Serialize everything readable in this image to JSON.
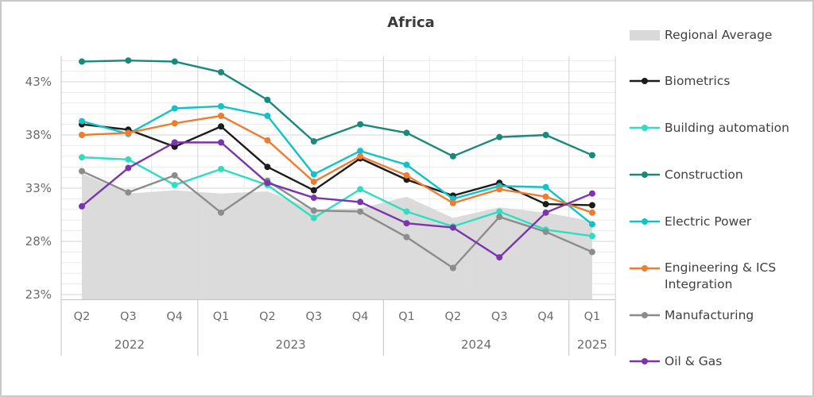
{
  "panel": {
    "title": "Africa"
  },
  "y_axis": {
    "tick_labels": [
      "43%",
      "38%",
      "33%",
      "28%",
      "23%"
    ],
    "tick_values": [
      43,
      38,
      33,
      28,
      23
    ]
  },
  "legend": {
    "items": [
      {
        "name": "Regional Average",
        "display_lines": [
          "Regional Average"
        ],
        "swatch": "area"
      },
      {
        "name": "Biometrics",
        "display_lines": [
          "Biometrics"
        ],
        "swatch": "line"
      },
      {
        "name": "Building automation",
        "display_lines": [
          "Building automation"
        ],
        "swatch": "line"
      },
      {
        "name": "Construction",
        "display_lines": [
          "Construction"
        ],
        "swatch": "line"
      },
      {
        "name": "Electric Power",
        "display_lines": [
          "Electric Power"
        ],
        "swatch": "line"
      },
      {
        "name": "Engineering & ICS Integration",
        "display_lines": [
          "Engineering & ICS",
          "Integration"
        ],
        "swatch": "line"
      },
      {
        "name": "Manufacturing",
        "display_lines": [
          "Manufacturing"
        ],
        "swatch": "line"
      },
      {
        "name": "Oil & Gas",
        "display_lines": [
          "Oil & Gas"
        ],
        "swatch": "line"
      }
    ]
  },
  "chart_data": {
    "type": "line",
    "title": "Africa",
    "unit": "%",
    "x_quarters": [
      "Q2",
      "Q3",
      "Q4",
      "Q1",
      "Q2",
      "Q3",
      "Q4",
      "Q1",
      "Q2",
      "Q3",
      "Q4",
      "Q1"
    ],
    "year_groups": [
      {
        "label": "2022",
        "count": 3
      },
      {
        "label": "2023",
        "count": 4
      },
      {
        "label": "2024",
        "count": 4
      },
      {
        "label": "2025",
        "count": 1
      }
    ],
    "y_ticks": [
      23,
      28,
      33,
      38,
      43
    ],
    "ylim": [
      22.5,
      45.5
    ],
    "grid": "minor horizontal every 1%, major at labeled ticks, vertical at category boundaries",
    "legend_position": "right",
    "area_series": {
      "name": "Regional Average",
      "color": "#d9d9d9",
      "values": [
        34.4,
        32.5,
        32.8,
        32.5,
        32.7,
        31.0,
        31.1,
        32.2,
        30.2,
        31.2,
        30.7,
        29.9
      ]
    },
    "series": [
      {
        "name": "Biometrics",
        "color": "#1c1c1c",
        "values": [
          39.0,
          38.5,
          36.9,
          38.8,
          35.0,
          32.8,
          35.8,
          33.8,
          32.3,
          33.5,
          31.5,
          31.4
        ]
      },
      {
        "name": "Building automation",
        "color": "#2fdec0",
        "values": [
          35.9,
          35.7,
          33.3,
          34.8,
          33.3,
          30.2,
          32.9,
          30.8,
          29.4,
          30.8,
          29.1,
          28.5
        ]
      },
      {
        "name": "Construction",
        "color": "#18897b",
        "values": [
          44.9,
          45.0,
          44.9,
          43.9,
          41.3,
          37.4,
          39.0,
          38.2,
          36.0,
          37.8,
          38.0,
          36.1
        ]
      },
      {
        "name": "Electric Power",
        "color": "#10c3c6",
        "values": [
          39.3,
          38.1,
          40.5,
          40.7,
          39.8,
          34.3,
          36.5,
          35.2,
          32.0,
          33.2,
          33.1,
          29.6
        ]
      },
      {
        "name": "Engineering & ICS Integration",
        "color": "#ee7d31",
        "values": [
          38.0,
          38.2,
          39.1,
          39.8,
          37.5,
          33.6,
          36.0,
          34.2,
          31.6,
          32.9,
          32.2,
          30.7
        ]
      },
      {
        "name": "Manufacturing",
        "color": "#8c8c8c",
        "values": [
          34.6,
          32.6,
          34.2,
          30.7,
          33.7,
          30.9,
          30.8,
          28.4,
          25.5,
          30.3,
          28.9,
          27.0
        ]
      },
      {
        "name": "Oil & Gas",
        "color": "#7a35ad",
        "values": [
          31.3,
          34.9,
          37.3,
          37.3,
          33.5,
          32.1,
          31.7,
          29.7,
          29.3,
          26.5,
          30.7,
          32.5
        ]
      }
    ]
  }
}
